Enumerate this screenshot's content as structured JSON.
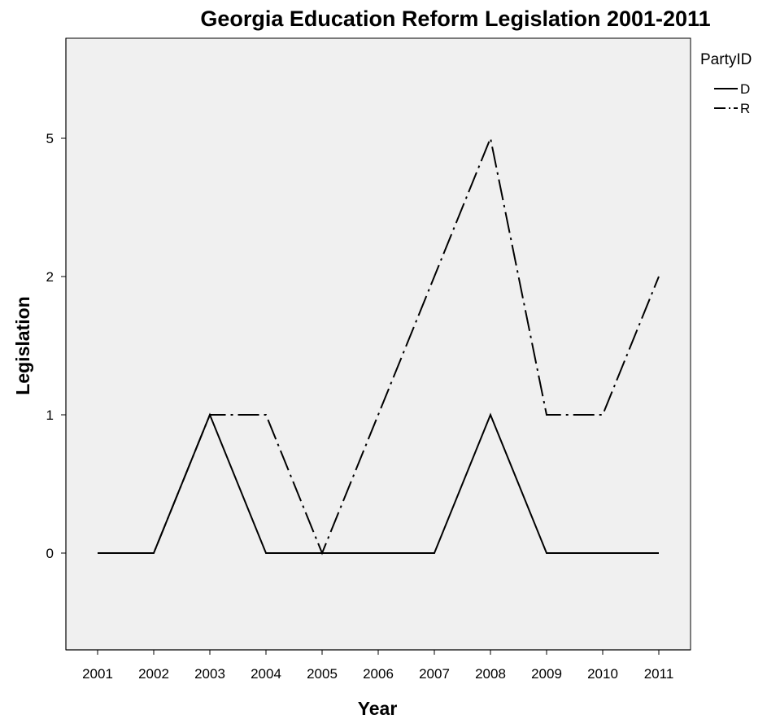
{
  "chart_data": {
    "type": "line",
    "title": "Georgia Education Reform Legislation 2001-2011",
    "xlabel": "Year",
    "ylabel": "Legislation",
    "categories": [
      "2001",
      "2002",
      "2003",
      "2004",
      "2005",
      "2006",
      "2007",
      "2008",
      "2009",
      "2010",
      "2011"
    ],
    "y_ticks": [
      "0",
      "1",
      "2",
      "5"
    ],
    "y_scale": "ordinal (ticks 0, 1, 2, 5 equally spaced)",
    "grid": false,
    "legend": {
      "title": "PartyID",
      "placement": "top-right"
    },
    "series": [
      {
        "name": "D",
        "line_style": "solid",
        "values": [
          "0",
          "0",
          "1",
          "0",
          "0",
          "0",
          "0",
          "1",
          "0",
          "0",
          "0"
        ]
      },
      {
        "name": "R",
        "line_style": "dash-dot",
        "values": [
          "0",
          "0",
          "1",
          "1",
          "0",
          "1",
          "2",
          "5",
          "1",
          "1",
          "2"
        ]
      }
    ],
    "colors": {
      "plot_background": "#f0f0f0",
      "line": "#000000",
      "axis": "#000000"
    }
  }
}
